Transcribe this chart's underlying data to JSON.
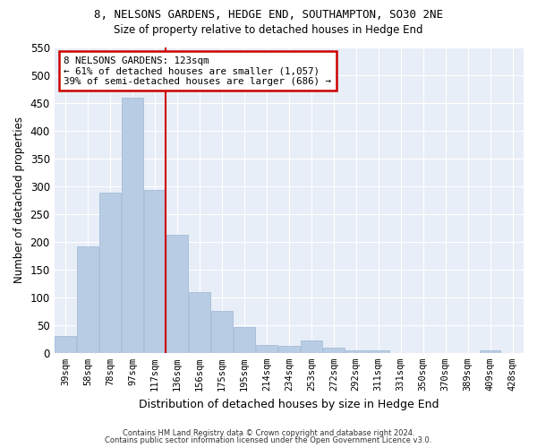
{
  "title": "8, NELSONS GARDENS, HEDGE END, SOUTHAMPTON, SO30 2NE",
  "subtitle": "Size of property relative to detached houses in Hedge End",
  "xlabel": "Distribution of detached houses by size in Hedge End",
  "ylabel": "Number of detached properties",
  "categories": [
    "39sqm",
    "58sqm",
    "78sqm",
    "97sqm",
    "117sqm",
    "136sqm",
    "156sqm",
    "175sqm",
    "195sqm",
    "214sqm",
    "234sqm",
    "253sqm",
    "272sqm",
    "292sqm",
    "311sqm",
    "331sqm",
    "350sqm",
    "370sqm",
    "389sqm",
    "409sqm",
    "428sqm"
  ],
  "values": [
    30,
    191,
    288,
    459,
    293,
    213,
    109,
    75,
    46,
    14,
    13,
    22,
    10,
    5,
    5,
    0,
    0,
    0,
    0,
    5,
    0
  ],
  "bar_color": "#b8cce4",
  "bar_edge_color": "#9eb6d4",
  "vline_color": "#cc0000",
  "vline_x_index": 4,
  "annotation_text": "8 NELSONS GARDENS: 123sqm\n← 61% of detached houses are smaller (1,057)\n39% of semi-detached houses are larger (686) →",
  "annotation_box_color": "#ffffff",
  "annotation_box_edge": "#cc0000",
  "ylim": [
    0,
    550
  ],
  "yticks": [
    0,
    50,
    100,
    150,
    200,
    250,
    300,
    350,
    400,
    450,
    500,
    550
  ],
  "background_color": "#e8eef7",
  "fig_background_color": "#ffffff",
  "grid_color": "#ffffff",
  "footer1": "Contains HM Land Registry data © Crown copyright and database right 2024.",
  "footer2": "Contains public sector information licensed under the Open Government Licence v3.0."
}
